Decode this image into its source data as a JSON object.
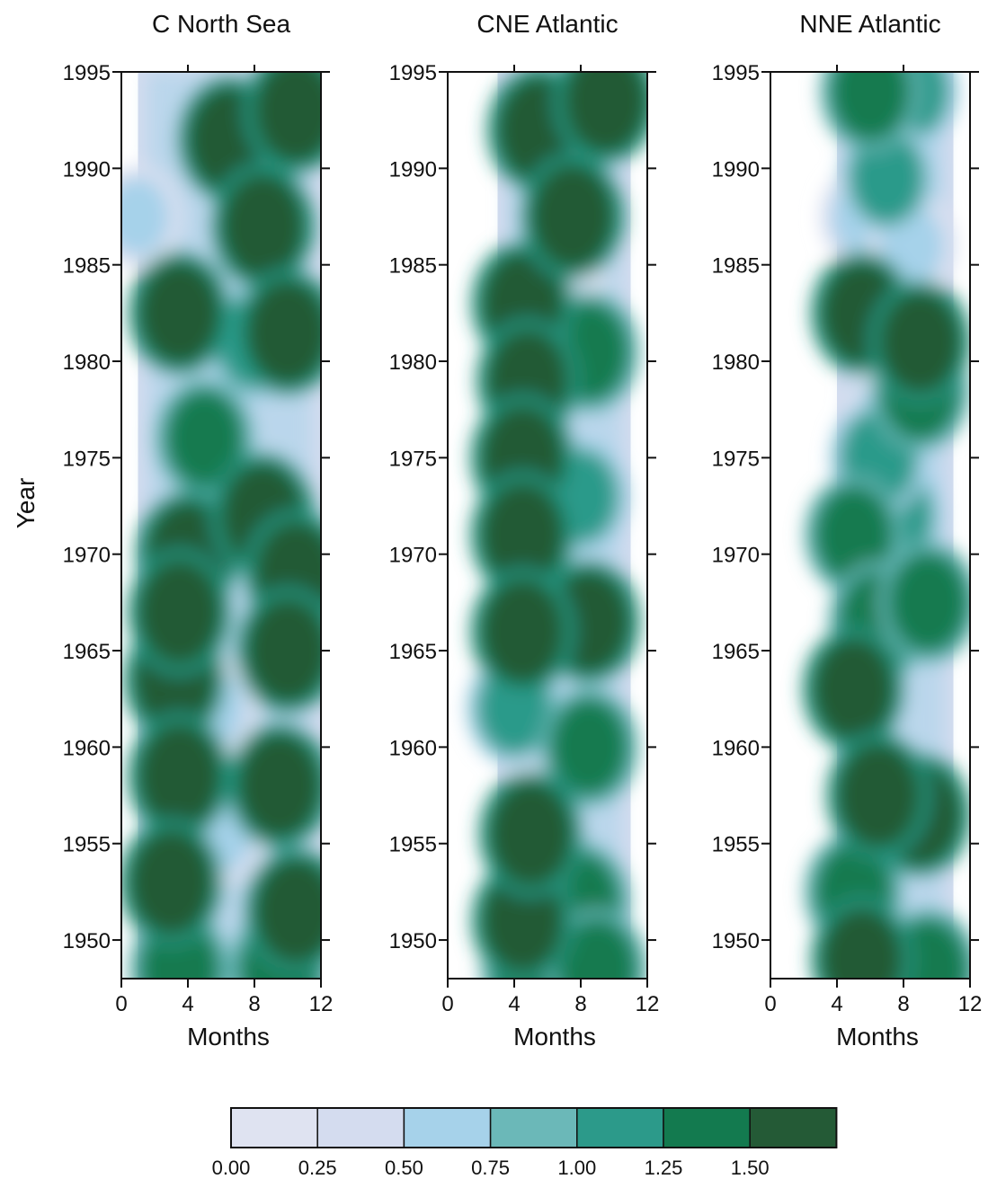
{
  "chart_data": {
    "type": "heatmap",
    "ylabel": "Year",
    "y_ticks": [
      1950,
      1955,
      1960,
      1965,
      1970,
      1975,
      1980,
      1985,
      1990,
      1995
    ],
    "panels": [
      {
        "title": "C North Sea",
        "xlabel": "Months",
        "x_ticks": [
          0,
          4,
          8,
          12
        ],
        "xlim": [
          0,
          12
        ],
        "ylim": [
          1948,
          1995
        ],
        "data_range_months": [
          1,
          12
        ],
        "blobs": [
          {
            "month": 1.0,
            "year": 1987.5,
            "value": 0.6
          },
          {
            "month": 6.5,
            "year": 1991.5,
            "value": 1.6
          },
          {
            "month": 10.5,
            "year": 1993.0,
            "value": 1.6
          },
          {
            "month": 8.5,
            "year": 1987.0,
            "value": 1.6
          },
          {
            "month": 10.0,
            "year": 1981.5,
            "value": 1.6
          },
          {
            "month": 3.5,
            "year": 1982.5,
            "value": 1.5
          },
          {
            "month": 8.0,
            "year": 1981.0,
            "value": 1.2
          },
          {
            "month": 5.0,
            "year": 1976.0,
            "value": 1.3
          },
          {
            "month": 4.0,
            "year": 1970.0,
            "value": 1.6
          },
          {
            "month": 8.5,
            "year": 1972.0,
            "value": 1.6
          },
          {
            "month": 10.5,
            "year": 1969.0,
            "value": 1.6
          },
          {
            "month": 3.5,
            "year": 1967.0,
            "value": 1.6
          },
          {
            "month": 10.0,
            "year": 1965.0,
            "value": 1.6
          },
          {
            "month": 3.2,
            "year": 1963.5,
            "value": 1.5
          },
          {
            "month": 3.5,
            "year": 1958.5,
            "value": 1.6
          },
          {
            "month": 9.5,
            "year": 1958.0,
            "value": 1.6
          },
          {
            "month": 3.0,
            "year": 1953.0,
            "value": 1.6
          },
          {
            "month": 10.5,
            "year": 1951.5,
            "value": 1.6
          },
          {
            "month": 3.5,
            "year": 1948.5,
            "value": 1.4
          },
          {
            "month": 9.5,
            "year": 1948.5,
            "value": 1.4
          },
          {
            "month": 6.0,
            "year": 1973.0,
            "value": 0.6
          },
          {
            "month": 5.5,
            "year": 1962.0,
            "value": 0.6
          },
          {
            "month": 6.0,
            "year": 1955.5,
            "value": 0.6
          }
        ]
      },
      {
        "title": "CNE Atlantic",
        "xlabel": "Months",
        "x_ticks": [
          0,
          4,
          8,
          12
        ],
        "xlim": [
          0,
          12
        ],
        "ylim": [
          1948,
          1995
        ],
        "data_range_months": [
          3,
          11
        ],
        "blobs": [
          {
            "month": 5.5,
            "year": 1992.0,
            "value": 1.6
          },
          {
            "month": 9.5,
            "year": 1993.5,
            "value": 1.6
          },
          {
            "month": 7.5,
            "year": 1987.5,
            "value": 1.6
          },
          {
            "month": 4.5,
            "year": 1983.0,
            "value": 1.5
          },
          {
            "month": 4.8,
            "year": 1979.0,
            "value": 1.5
          },
          {
            "month": 8.5,
            "year": 1980.5,
            "value": 1.4
          },
          {
            "month": 4.5,
            "year": 1975.0,
            "value": 1.6
          },
          {
            "month": 4.5,
            "year": 1971.0,
            "value": 1.6
          },
          {
            "month": 4.5,
            "year": 1966.0,
            "value": 1.6
          },
          {
            "month": 8.5,
            "year": 1966.5,
            "value": 1.5
          },
          {
            "month": 8.0,
            "year": 1973.0,
            "value": 1.1
          },
          {
            "month": 8.5,
            "year": 1960.0,
            "value": 1.3
          },
          {
            "month": 4.0,
            "year": 1962.0,
            "value": 1.1
          },
          {
            "month": 5.0,
            "year": 1955.5,
            "value": 1.6
          },
          {
            "month": 4.5,
            "year": 1951.0,
            "value": 1.5
          },
          {
            "month": 8.0,
            "year": 1952.0,
            "value": 1.3
          },
          {
            "month": 5.0,
            "year": 1948.5,
            "value": 1.4
          },
          {
            "month": 9.0,
            "year": 1948.5,
            "value": 1.4
          },
          {
            "month": 6.0,
            "year": 1959.5,
            "value": 0.3
          },
          {
            "month": 7.0,
            "year": 1984.5,
            "value": 0.3
          }
        ]
      },
      {
        "title": "NNE Atlantic",
        "xlabel": "Months",
        "x_ticks": [
          0,
          4,
          8,
          12
        ],
        "xlim": [
          0,
          12
        ],
        "ylim": [
          1948,
          1995
        ],
        "data_range_months": [
          4,
          11
        ],
        "blobs": [
          {
            "month": 6.0,
            "year": 1994.0,
            "value": 1.4
          },
          {
            "month": 8.5,
            "year": 1994.0,
            "value": 1.0
          },
          {
            "month": 7.0,
            "year": 1989.5,
            "value": 1.1
          },
          {
            "month": 5.5,
            "year": 1987.5,
            "value": 0.5
          },
          {
            "month": 8.5,
            "year": 1986.0,
            "value": 0.7
          },
          {
            "month": 5.5,
            "year": 1982.5,
            "value": 1.5
          },
          {
            "month": 9.0,
            "year": 1981.0,
            "value": 1.5
          },
          {
            "month": 9.0,
            "year": 1978.5,
            "value": 1.4
          },
          {
            "month": 6.5,
            "year": 1975.0,
            "value": 1.2
          },
          {
            "month": 7.5,
            "year": 1972.0,
            "value": 1.1
          },
          {
            "month": 5.0,
            "year": 1971.0,
            "value": 1.3
          },
          {
            "month": 6.5,
            "year": 1966.5,
            "value": 1.4
          },
          {
            "month": 9.5,
            "year": 1967.5,
            "value": 1.4
          },
          {
            "month": 5.0,
            "year": 1963.0,
            "value": 1.5
          },
          {
            "month": 6.5,
            "year": 1957.5,
            "value": 1.6
          },
          {
            "month": 9.0,
            "year": 1956.5,
            "value": 1.5
          },
          {
            "month": 5.0,
            "year": 1952.5,
            "value": 1.3
          },
          {
            "month": 5.5,
            "year": 1949.0,
            "value": 1.5
          },
          {
            "month": 9.5,
            "year": 1948.5,
            "value": 1.4
          },
          {
            "month": 7.0,
            "year": 1969.5,
            "value": 0.7
          },
          {
            "month": 7.0,
            "year": 1977.0,
            "value": 0.6
          }
        ]
      }
    ],
    "colorbar": {
      "levels": [
        0.0,
        0.25,
        0.5,
        0.75,
        1.0,
        1.25,
        1.5
      ],
      "tick_labels": [
        "0.00",
        "0.25",
        "0.50",
        "0.75",
        "1.00",
        "1.25",
        "1.50"
      ],
      "colors": [
        "#dfe3f1",
        "#d4dcef",
        "#a6d2ea",
        "#6bb8b8",
        "#2c9a8a",
        "#137a4f",
        "#245a36"
      ]
    }
  }
}
